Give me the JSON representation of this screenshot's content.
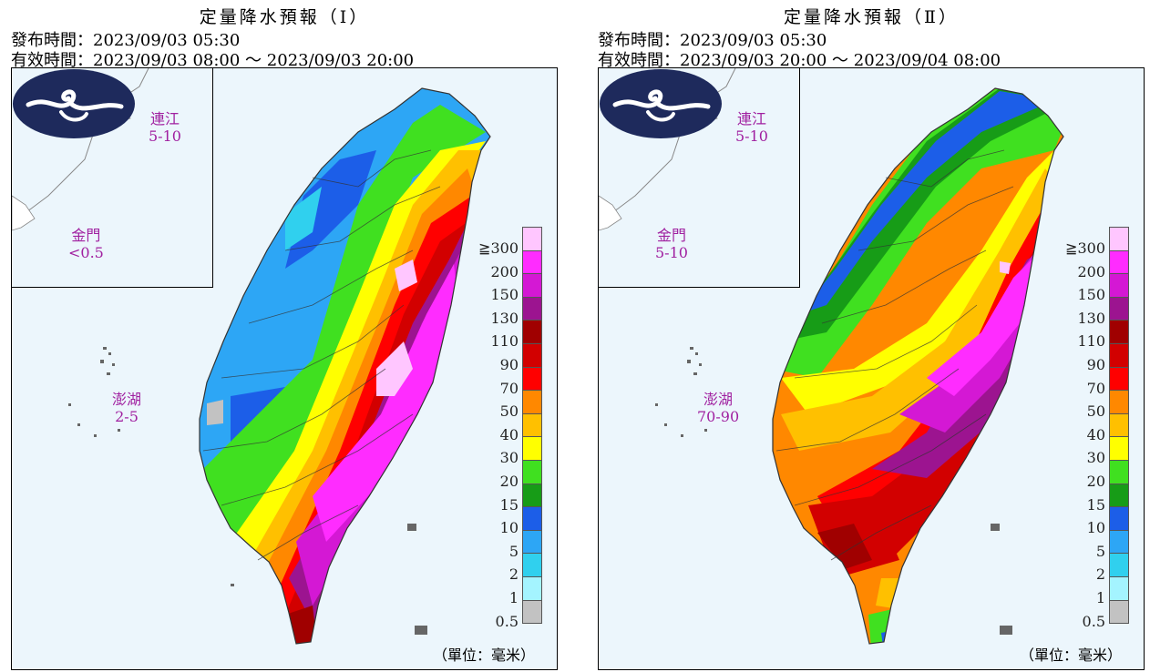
{
  "panels": [
    {
      "title": "定量降水預報（Ⅰ）",
      "issue": "發布時間：2023/09/03 05:30",
      "valid": "有效時間：2023/09/03 08:00 ～ 2023/09/03 20:00",
      "labels": {
        "lienchiang": {
          "name": "連江",
          "value": "5-10"
        },
        "kinmen": {
          "name": "金門",
          "value": "<0.5"
        },
        "penghu": {
          "name": "澎湖",
          "value": "2-5"
        }
      }
    },
    {
      "title": "定量降水預報（Ⅱ）",
      "issue": "發布時間：2023/09/03 05:30",
      "valid": "有效時間：2023/09/03 20:00 ～ 2023/09/04 08:00",
      "labels": {
        "lienchiang": {
          "name": "連江",
          "value": "5-10"
        },
        "kinmen": {
          "name": "金門",
          "value": "5-10"
        },
        "penghu": {
          "name": "澎湖",
          "value": "70-90"
        }
      }
    }
  ],
  "legend": [
    {
      "label": "≧300",
      "color": "#ffc6ff"
    },
    {
      "label": "200",
      "color": "#ff2cff"
    },
    {
      "label": "150",
      "color": "#d418d4"
    },
    {
      "label": "130",
      "color": "#9c1490"
    },
    {
      "label": "110",
      "color": "#a00000"
    },
    {
      "label": "90",
      "color": "#d20000"
    },
    {
      "label": "70",
      "color": "#ff0000"
    },
    {
      "label": "50",
      "color": "#ff8800"
    },
    {
      "label": "40",
      "color": "#ffc000"
    },
    {
      "label": "30",
      "color": "#ffff00"
    },
    {
      "label": "20",
      "color": "#40e020"
    },
    {
      "label": "15",
      "color": "#179c17"
    },
    {
      "label": "10",
      "color": "#1c5ee8"
    },
    {
      "label": "5",
      "color": "#2da6f5"
    },
    {
      "label": "2",
      "color": "#30d0ee"
    },
    {
      "label": "1",
      "color": "#a4f4ff"
    },
    {
      "label": "0.5",
      "color": "#c2c2c2"
    }
  ],
  "unit": "（單位：毫米）",
  "colors": {
    "sea": "#ecf6fc",
    "logo": "#1e2a5c",
    "label": "#a020a0"
  }
}
